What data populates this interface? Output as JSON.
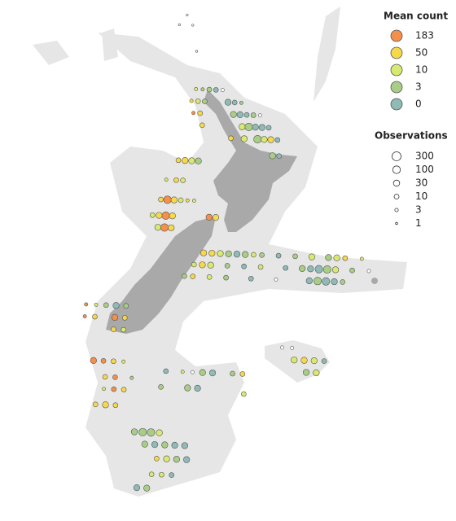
{
  "legend": {
    "mean_count": {
      "title": "Mean count",
      "items": [
        {
          "value": 183,
          "color": "#f5904a"
        },
        {
          "value": 50,
          "color": "#f6d84b"
        },
        {
          "value": 10,
          "color": "#d9e86e"
        },
        {
          "value": 3,
          "color": "#a9cd86"
        },
        {
          "value": 0,
          "color": "#8fbab6"
        }
      ]
    },
    "observations": {
      "title": "Observations",
      "values": [
        300,
        100,
        30,
        10,
        3,
        1
      ]
    }
  },
  "points": [
    [
      171,
      -30.7,
      0,
      1
    ],
    [
      171.4,
      -31.2,
      0,
      1
    ],
    [
      170.6,
      -31.2,
      0,
      1
    ],
    [
      171.8,
      -32.5,
      0,
      1
    ],
    [
      172.0,
      -34.4,
      10,
      3
    ],
    [
      172.4,
      -34.4,
      3,
      3
    ],
    [
      172.8,
      -34.4,
      3,
      10
    ],
    [
      173.2,
      -34.4,
      0,
      10
    ],
    [
      173.6,
      -34.4,
      0,
      3
    ],
    [
      171.8,
      -35.0,
      50,
      3
    ],
    [
      172.2,
      -35.0,
      10,
      10
    ],
    [
      172.6,
      -35.0,
      3,
      10
    ],
    [
      174.0,
      -35.0,
      0,
      30
    ],
    [
      174.4,
      -35.0,
      0,
      10
    ],
    [
      174.8,
      -35.0,
      3,
      3
    ],
    [
      172.0,
      -35.6,
      183,
      3
    ],
    [
      172.4,
      -35.6,
      50,
      10
    ],
    [
      174.4,
      -35.6,
      3,
      30
    ],
    [
      174.8,
      -35.6,
      0,
      30
    ],
    [
      175.2,
      -35.6,
      0,
      10
    ],
    [
      175.6,
      -35.6,
      3,
      10
    ],
    [
      176.0,
      -35.6,
      0,
      3
    ],
    [
      172.6,
      -36.2,
      50,
      10
    ],
    [
      175.0,
      -36.2,
      10,
      30
    ],
    [
      175.4,
      -36.2,
      3,
      100
    ],
    [
      175.8,
      -36.2,
      0,
      30
    ],
    [
      176.2,
      -36.2,
      0,
      30
    ],
    [
      176.6,
      -36.2,
      0,
      10
    ],
    [
      174.4,
      -36.8,
      50,
      10
    ],
    [
      175.2,
      -36.8,
      10,
      30
    ],
    [
      176.0,
      -36.8,
      3,
      100
    ],
    [
      176.4,
      -36.8,
      10,
      30
    ],
    [
      176.8,
      -36.8,
      50,
      30
    ],
    [
      177.2,
      -36.8,
      0,
      10
    ],
    [
      177.0,
      -37.6,
      3,
      30
    ],
    [
      177.4,
      -37.6,
      0,
      10
    ],
    [
      171.4,
      -38.0,
      50,
      10
    ],
    [
      171.8,
      -38.0,
      50,
      30
    ],
    [
      172.2,
      -38.0,
      10,
      30
    ],
    [
      172.6,
      -38.0,
      3,
      30
    ],
    [
      170.8,
      -39.0,
      10,
      3
    ],
    [
      171.4,
      -39.0,
      50,
      10
    ],
    [
      171.8,
      -39.0,
      10,
      10
    ],
    [
      170.6,
      -40.0,
      50,
      10
    ],
    [
      171.0,
      -40.0,
      183,
      100
    ],
    [
      171.4,
      -40.0,
      50,
      30
    ],
    [
      171.8,
      -40.0,
      10,
      10
    ],
    [
      172.2,
      -40.0,
      50,
      3
    ],
    [
      172.6,
      -40.0,
      10,
      3
    ],
    [
      170.2,
      -40.8,
      10,
      10
    ],
    [
      170.6,
      -40.8,
      50,
      30
    ],
    [
      171.0,
      -40.8,
      183,
      100
    ],
    [
      171.4,
      -40.8,
      50,
      30
    ],
    [
      173.6,
      -40.8,
      183,
      30
    ],
    [
      174.0,
      -40.8,
      50,
      30
    ],
    [
      170.6,
      -41.4,
      10,
      30
    ],
    [
      171.0,
      -41.4,
      183,
      100
    ],
    [
      171.4,
      -41.4,
      50,
      30
    ],
    [
      173.5,
      -42.6,
      50,
      30
    ],
    [
      174,
      -42.6,
      50,
      30
    ],
    [
      174.5,
      -42.6,
      10,
      30
    ],
    [
      175,
      -42.6,
      3,
      30
    ],
    [
      175.5,
      -42.6,
      0,
      30
    ],
    [
      176,
      -42.6,
      3,
      30
    ],
    [
      176.5,
      -42.6,
      10,
      10
    ],
    [
      177,
      -42.6,
      3,
      10
    ],
    [
      178,
      -42.6,
      0,
      10
    ],
    [
      179,
      -42.6,
      3,
      10
    ],
    [
      180,
      -42.6,
      10,
      30
    ],
    [
      181,
      -42.6,
      3,
      30
    ],
    [
      181.5,
      -42.6,
      10,
      30
    ],
    [
      182,
      -42.6,
      50,
      10
    ],
    [
      183,
      -42.6,
      10,
      3
    ],
    [
      173,
      -43.2,
      10,
      10
    ],
    [
      173.5,
      -43.2,
      50,
      30
    ],
    [
      174,
      -43.2,
      10,
      30
    ],
    [
      175,
      -43.2,
      3,
      10
    ],
    [
      176,
      -43.2,
      0,
      10
    ],
    [
      177,
      -43.2,
      10,
      10
    ],
    [
      178.5,
      -43.2,
      0,
      10
    ],
    [
      179.5,
      -43.2,
      3,
      30
    ],
    [
      180,
      -43.2,
      0,
      30
    ],
    [
      180.5,
      -43.2,
      0,
      100
    ],
    [
      181,
      -43.2,
      3,
      100
    ],
    [
      181.5,
      -43.2,
      10,
      30
    ],
    [
      182.5,
      -43.2,
      3,
      10
    ],
    [
      183.5,
      -43.2,
      0,
      3
    ],
    [
      172.5,
      -43.8,
      3,
      10
    ],
    [
      173,
      -43.8,
      50,
      10
    ],
    [
      174,
      -43.8,
      10,
      10
    ],
    [
      175,
      -43.8,
      3,
      10
    ],
    [
      176.5,
      -43.8,
      0,
      10
    ],
    [
      178,
      -43.8,
      0,
      3
    ],
    [
      180,
      -43.8,
      0,
      30
    ],
    [
      180.5,
      -43.8,
      3,
      100
    ],
    [
      181,
      -43.8,
      0,
      100
    ],
    [
      181.5,
      -43.8,
      0,
      30
    ],
    [
      182,
      -43.8,
      3,
      10
    ],
    [
      166.8,
      -45.4,
      183,
      3
    ],
    [
      167.4,
      -45.4,
      10,
      3
    ],
    [
      168,
      -45.4,
      3,
      10
    ],
    [
      168.6,
      -45.4,
      0,
      30
    ],
    [
      169.2,
      -45.4,
      3,
      10
    ],
    [
      166.8,
      -46.0,
      183,
      3
    ],
    [
      167.4,
      -46.0,
      50,
      10
    ],
    [
      168.6,
      -46.0,
      183,
      30
    ],
    [
      169.2,
      -46.0,
      50,
      10
    ],
    [
      168.6,
      -46.6,
      50,
      10
    ],
    [
      169.2,
      -46.6,
      10,
      10
    ],
    [
      167.6,
      -48.2,
      183,
      30
    ],
    [
      168.2,
      -48.2,
      183,
      10
    ],
    [
      168.8,
      -48.2,
      50,
      10
    ],
    [
      169.4,
      -48.2,
      10,
      3
    ],
    [
      168.4,
      -49.0,
      50,
      10
    ],
    [
      169.0,
      -49.0,
      183,
      10
    ],
    [
      170,
      -49,
      3,
      3
    ],
    [
      168.4,
      -49.6,
      10,
      3
    ],
    [
      169.0,
      -49.6,
      183,
      10
    ],
    [
      169.6,
      -49.6,
      50,
      10
    ],
    [
      168.0,
      -50.4,
      50,
      10
    ],
    [
      168.6,
      -50.4,
      50,
      30
    ],
    [
      169.2,
      -50.4,
      50,
      10
    ],
    [
      172.0,
      -48.6,
      0,
      10
    ],
    [
      173.0,
      -48.6,
      10,
      3
    ],
    [
      173.6,
      -48.6,
      0,
      3
    ],
    [
      174.2,
      -48.6,
      3,
      30
    ],
    [
      174.8,
      -48.6,
      0,
      30
    ],
    [
      176,
      -48.6,
      3,
      10
    ],
    [
      176.6,
      -48.6,
      50,
      10
    ],
    [
      171.8,
      -49.4,
      3,
      10
    ],
    [
      173.4,
      -49.4,
      3,
      30
    ],
    [
      174.0,
      -49.4,
      0,
      30
    ],
    [
      176.8,
      -49.6,
      10,
      10
    ],
    [
      170.5,
      -51.7,
      3,
      30
    ],
    [
      171,
      -51.7,
      3,
      100
    ],
    [
      171.5,
      -51.7,
      3,
      100
    ],
    [
      172,
      -51.7,
      10,
      30
    ],
    [
      171.2,
      -52.3,
      3,
      30
    ],
    [
      171.8,
      -52.3,
      0,
      30
    ],
    [
      172.4,
      -52.3,
      3,
      30
    ],
    [
      173,
      -52.3,
      0,
      30
    ],
    [
      173.6,
      -52.3,
      0,
      30
    ],
    [
      172,
      -53.0,
      50,
      10
    ],
    [
      172.6,
      -53.0,
      10,
      30
    ],
    [
      173.2,
      -53.0,
      3,
      30
    ],
    [
      173.8,
      -53.0,
      0,
      30
    ],
    [
      171.8,
      -53.8,
      10,
      10
    ],
    [
      172.4,
      -53.8,
      10,
      10
    ],
    [
      173,
      -53.8,
      0,
      10
    ],
    [
      171,
      -54.5,
      0,
      30
    ],
    [
      171.6,
      -54.5,
      3,
      30
    ],
    [
      178.8,
      -47.2,
      0,
      3
    ],
    [
      179.4,
      -47.2,
      0,
      3
    ],
    [
      179.6,
      -47.8,
      10,
      30
    ],
    [
      180.2,
      -47.8,
      50,
      30
    ],
    [
      180.8,
      -47.8,
      10,
      30
    ],
    [
      181.4,
      -47.8,
      0,
      10
    ],
    [
      180.4,
      -48.4,
      3,
      30
    ],
    [
      181,
      -48.4,
      10,
      30
    ]
  ]
}
